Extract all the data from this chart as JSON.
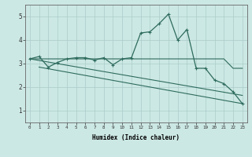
{
  "x": [
    0,
    1,
    2,
    3,
    4,
    5,
    6,
    7,
    8,
    9,
    10,
    11,
    12,
    13,
    14,
    15,
    16,
    17,
    18,
    19,
    20,
    21,
    22,
    23
  ],
  "line1": [
    3.2,
    3.3,
    2.85,
    3.05,
    3.2,
    3.25,
    3.25,
    3.15,
    3.25,
    2.95,
    3.2,
    3.25,
    4.3,
    4.35,
    4.7,
    5.1,
    4.0,
    4.45,
    2.8,
    2.8,
    2.3,
    2.15,
    1.8,
    1.3
  ],
  "line2": [
    3.2,
    3.2,
    3.2,
    3.2,
    3.2,
    3.2,
    3.2,
    3.2,
    3.2,
    3.2,
    3.2,
    3.2,
    3.2,
    3.2,
    3.2,
    3.2,
    3.2,
    3.2,
    3.2,
    3.2,
    3.2,
    3.2,
    2.8,
    2.8
  ],
  "line3_x": [
    1,
    23
  ],
  "line3_y": [
    2.85,
    1.3
  ],
  "line4_x": [
    0,
    23
  ],
  "line4_y": [
    3.2,
    1.65
  ],
  "color_main": "#2e6b5e",
  "bg_color": "#cce8e4",
  "grid_color": "#aaccca",
  "xlabel": "Humidex (Indice chaleur)",
  "ylim": [
    0.5,
    5.5
  ],
  "xlim": [
    -0.5,
    23.5
  ],
  "yticks": [
    1,
    2,
    3,
    4,
    5
  ],
  "xticks": [
    0,
    1,
    2,
    3,
    4,
    5,
    6,
    7,
    8,
    9,
    10,
    11,
    12,
    13,
    14,
    15,
    16,
    17,
    18,
    19,
    20,
    21,
    22,
    23
  ]
}
